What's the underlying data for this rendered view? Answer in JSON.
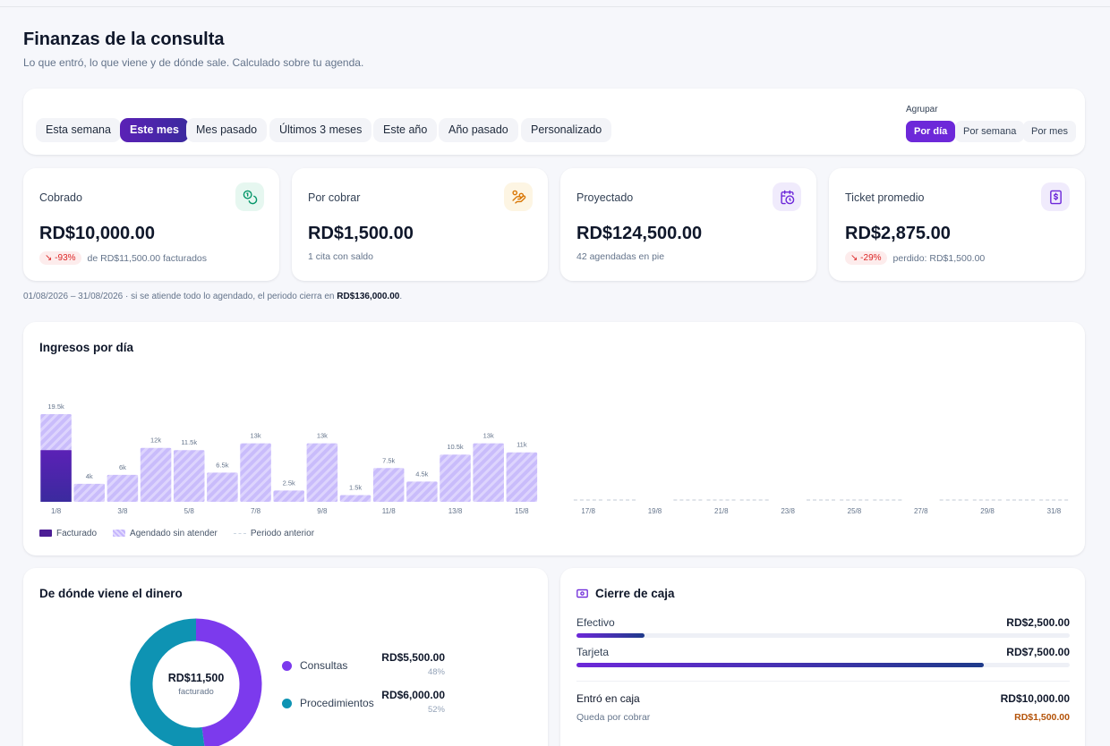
{
  "header": {
    "title": "Finanzas de la consulta",
    "subtitle": "Lo que entró, lo que viene y de dónde sale. Calculado sobre tu agenda."
  },
  "filters": {
    "ranges": [
      "Esta semana",
      "Este mes",
      "Mes pasado",
      "Últimos 3 meses",
      "Este año",
      "Año pasado",
      "Personalizado"
    ],
    "active_range": "Este mes",
    "group_label": "Agrupar",
    "groups": [
      "Por día",
      "Por semana",
      "Por mes"
    ],
    "active_group": "Por día"
  },
  "kpis": [
    {
      "label": "Cobrado",
      "value": "RD$10,000.00",
      "badge": "-93%",
      "sub": "de RD$11,500.00 facturados",
      "icon": "coins-icon",
      "icon_color": "#059669",
      "icon_bg": "#e6f7f0"
    },
    {
      "label": "Por cobrar",
      "value": "RD$1,500.00",
      "badge": "",
      "sub": "1 cita con saldo",
      "icon": "hand-coins-icon",
      "icon_color": "#d97706",
      "icon_bg": "#fdf5e3"
    },
    {
      "label": "Proyectado",
      "value": "RD$124,500.00",
      "badge": "",
      "sub": "42 agendadas en pie",
      "icon": "calendar-clock-icon",
      "icon_color": "#6d28d9",
      "icon_bg": "#f0ebfc"
    },
    {
      "label": "Ticket promedio",
      "value": "RD$2,875.00",
      "badge": "-29%",
      "sub": "perdido: RD$1,500.00",
      "icon": "receipt-icon",
      "icon_color": "#6d28d9",
      "icon_bg": "#f0ebfc"
    }
  ],
  "period_note": {
    "text": "01/08/2026 – 31/08/2026 · si se atiende todo lo agendado, el periodo cierra en",
    "total": "RD$136,000.00",
    "end": "."
  },
  "chart_data": {
    "type": "bar",
    "title": "Ingresos por día",
    "categories": [
      "1/8",
      "2/8",
      "3/8",
      "4/8",
      "5/8",
      "6/8",
      "7/8",
      "8/8",
      "9/8",
      "10/8",
      "11/8",
      "12/8",
      "13/8",
      "14/8",
      "15/8",
      "16/8",
      "17/8",
      "18/8",
      "19/8",
      "20/8",
      "21/8",
      "22/8",
      "23/8",
      "24/8",
      "25/8",
      "26/8",
      "27/8",
      "28/8",
      "29/8",
      "30/8",
      "31/8"
    ],
    "tick_labels": [
      "1/8",
      "3/8",
      "5/8",
      "7/8",
      "9/8",
      "11/8",
      "13/8",
      "15/8",
      "17/8",
      "19/8",
      "21/8",
      "23/8",
      "25/8",
      "27/8",
      "29/8",
      "31/8"
    ],
    "bar_labels": [
      "19.5k",
      "4k",
      "6k",
      "12k",
      "11.5k",
      "6.5k",
      "13k",
      "2.5k",
      "13k",
      "1.5k",
      "7.5k",
      "4.5k",
      "10.5k",
      "13k",
      "11k"
    ],
    "series": [
      {
        "name": "Facturado",
        "values": [
          11500,
          0,
          0,
          0,
          0,
          0,
          0,
          0,
          0,
          0,
          0,
          0,
          0,
          0,
          0,
          0,
          0,
          0,
          0,
          0,
          0,
          0,
          0,
          0,
          0,
          0,
          0,
          0,
          0,
          0,
          0
        ]
      },
      {
        "name": "Agendado sin atender",
        "values": [
          8000,
          4000,
          6000,
          12000,
          11500,
          6500,
          13000,
          2500,
          13000,
          1500,
          7500,
          4500,
          10500,
          13000,
          11000,
          0,
          0,
          0,
          0,
          0,
          0,
          0,
          0,
          0,
          0,
          0,
          0,
          0,
          0,
          0,
          0
        ]
      },
      {
        "name": "Periodo anterior",
        "values": [
          0,
          0,
          0,
          0,
          0,
          0,
          0,
          0,
          0,
          0,
          0,
          0,
          0,
          0,
          0,
          0,
          300,
          300,
          0,
          300,
          300,
          400,
          0,
          300,
          300,
          300,
          0,
          400,
          300,
          300,
          400
        ]
      }
    ],
    "ylim": [
      0,
      19500
    ],
    "legend": "bottom-left",
    "colors": {
      "facturado": "#4c1d95",
      "agendado": "#c4b5fd",
      "anterior": "#cbd5e1"
    }
  },
  "sources": {
    "title": "De dónde viene el dinero",
    "center_value": "RD$11,500",
    "center_label": "facturado",
    "items": [
      {
        "name": "Consultas",
        "amount": "RD$5,500.00",
        "pct": "48%",
        "value": 5500,
        "color": "#7c3aed"
      },
      {
        "name": "Procedimientos",
        "amount": "RD$6,000.00",
        "pct": "52%",
        "value": 6000,
        "color": "#0e93b3"
      }
    ]
  },
  "cash": {
    "title": "Cierre de caja",
    "rows": [
      {
        "label": "Efectivo",
        "amount": "RD$2,500.00",
        "fraction": 0.25
      },
      {
        "label": "Tarjeta",
        "amount": "RD$7,500.00",
        "fraction": 0.75
      }
    ],
    "total_label": "Entró en caja",
    "total_amount": "RD$10,000.00",
    "pending_label": "Queda por cobrar",
    "pending_amount": "RD$1,500.00",
    "pending_color": "#b45309"
  }
}
